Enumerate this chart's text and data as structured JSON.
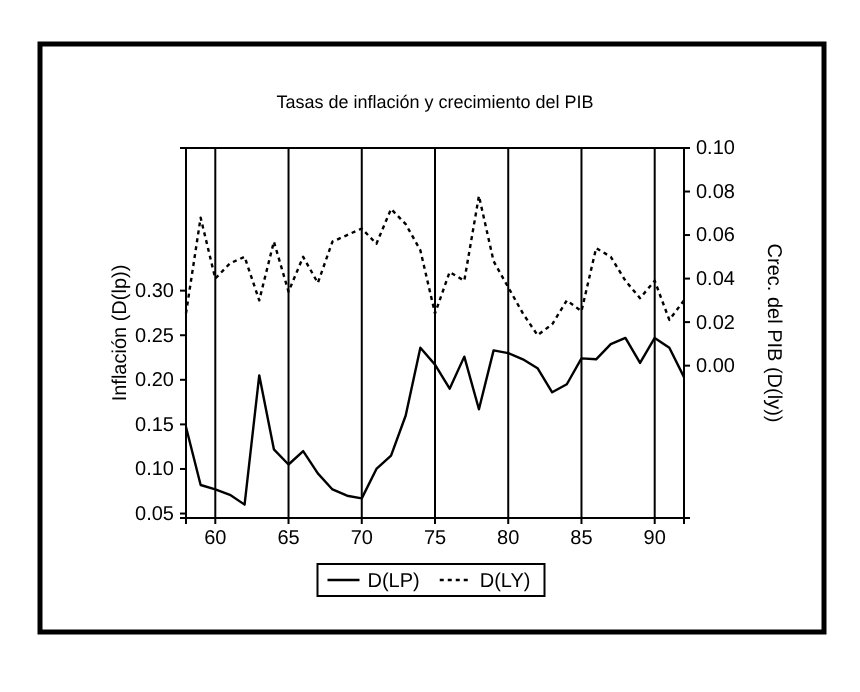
{
  "chart_data": {
    "type": "line",
    "title": "Tasas de inflación y crecimiento del PIB",
    "ylabel": "Inflación (D(lp))",
    "y2label": "Crec. del PIB (D(ly))",
    "x": [
      58,
      59,
      60,
      61,
      62,
      63,
      64,
      65,
      66,
      67,
      68,
      69,
      70,
      71,
      72,
      73,
      74,
      75,
      76,
      77,
      78,
      79,
      80,
      81,
      82,
      83,
      84,
      85,
      86,
      87,
      88,
      89,
      90,
      91,
      92
    ],
    "series": [
      {
        "name": "D(LP)",
        "color": "#000000",
        "line_style": "solid",
        "values": [
          0.147,
          0.082,
          0.077,
          0.071,
          0.06,
          0.205,
          0.122,
          0.105,
          0.12,
          0.095,
          0.077,
          0.07,
          0.067,
          0.1,
          0.115,
          0.16,
          0.236,
          0.217,
          0.19,
          0.226,
          0.167,
          0.233,
          0.23,
          0.223,
          0.213,
          0.186,
          0.195,
          0.224,
          0.223,
          0.24,
          0.247,
          0.219,
          0.247,
          0.236,
          0.203
        ]
      },
      {
        "name": "D(LY)",
        "color": "#000000",
        "line_style": "dotted",
        "axis": "y2",
        "values": [
          0.024,
          0.068,
          0.04,
          0.047,
          0.05,
          0.03,
          0.057,
          0.034,
          0.05,
          0.038,
          0.057,
          0.06,
          0.063,
          0.056,
          0.072,
          0.065,
          0.053,
          0.024,
          0.043,
          0.039,
          0.078,
          0.048,
          0.036,
          0.024,
          0.014,
          0.019,
          0.03,
          0.025,
          0.054,
          0.05,
          0.039,
          0.031,
          0.039,
          0.021,
          0.03
        ]
      }
    ],
    "xlim": [
      58,
      92
    ],
    "xticks": [
      60,
      65,
      70,
      75,
      80,
      85,
      90
    ],
    "ylim": [
      0.045,
      0.46
    ],
    "yticks": [
      {
        "value": 0.05,
        "label": "0.05"
      },
      {
        "value": 0.1,
        "label": "0.10"
      },
      {
        "value": 0.15,
        "label": "0.15"
      },
      {
        "value": 0.2,
        "label": "0.20"
      },
      {
        "value": 0.25,
        "label": "0.25"
      },
      {
        "value": 0.3,
        "label": "0.30"
      }
    ],
    "y2lim": [
      -0.07,
      0.1
    ],
    "y2ticks": [
      {
        "value": 0,
        "label": "0.00"
      },
      {
        "value": 0.02,
        "label": "0.02"
      },
      {
        "value": 0.04,
        "label": "0.04"
      },
      {
        "value": 0.06,
        "label": "0.06"
      },
      {
        "value": 0.08,
        "label": "0.08"
      },
      {
        "value": 0.1,
        "label": "0.10"
      }
    ],
    "grid": "x",
    "legend": "bottom"
  }
}
